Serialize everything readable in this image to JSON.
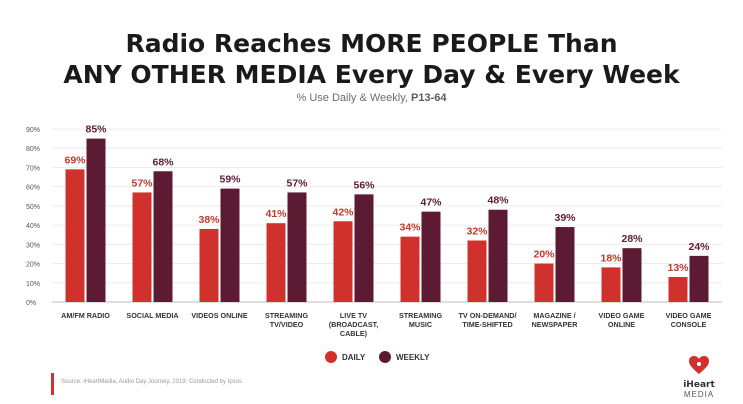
{
  "header": {
    "title_line1": "Radio Reaches MORE PEOPLE Than",
    "title_line2": "ANY OTHER MEDIA Every Day & Every Week",
    "subtitle_main": "% Use Daily & Weekly,",
    "subtitle_bold": "P13-64"
  },
  "footer": {
    "source": "Source: iHeartMedia, Audio Day Journey, 2019. Conducted by Ipsos",
    "logo_main": "iHeart",
    "logo_sub": "MEDIA"
  },
  "colors": {
    "daily": "#d0312d",
    "weekly": "#5c1a33",
    "daily_label": "#c0392b",
    "weekly_label": "#5c1a33",
    "accent": "#d0312d"
  },
  "chart_data": {
    "type": "bar",
    "categories": [
      [
        "AM/FM RADIO"
      ],
      [
        "SOCIAL MEDIA"
      ],
      [
        "VIDEOS ONLINE"
      ],
      [
        "STREAMING",
        "TV/VIDEO"
      ],
      [
        "LIVE TV",
        "(BROADCAST,",
        "CABLE)"
      ],
      [
        "STREAMING",
        "MUSIC"
      ],
      [
        "TV ON-DEMAND/",
        "TIME-SHIFTED"
      ],
      [
        "MAGAZINE /",
        "NEWSPAPER"
      ],
      [
        "VIDEO GAME",
        "ONLINE"
      ],
      [
        "VIDEO GAME",
        "CONSOLE"
      ]
    ],
    "series": [
      {
        "name": "DAILY",
        "values": [
          69,
          57,
          38,
          41,
          42,
          34,
          32,
          20,
          18,
          13
        ]
      },
      {
        "name": "WEEKLY",
        "values": [
          85,
          68,
          59,
          57,
          56,
          47,
          48,
          39,
          28,
          24
        ]
      }
    ],
    "value_suffix": "%",
    "yticks": [
      "0%",
      "10%",
      "20%",
      "30%",
      "40%",
      "50%",
      "60%",
      "70%",
      "80%",
      "90%"
    ],
    "ylim": [
      0,
      90
    ],
    "grid": true,
    "legend_position": "bottom-center"
  }
}
